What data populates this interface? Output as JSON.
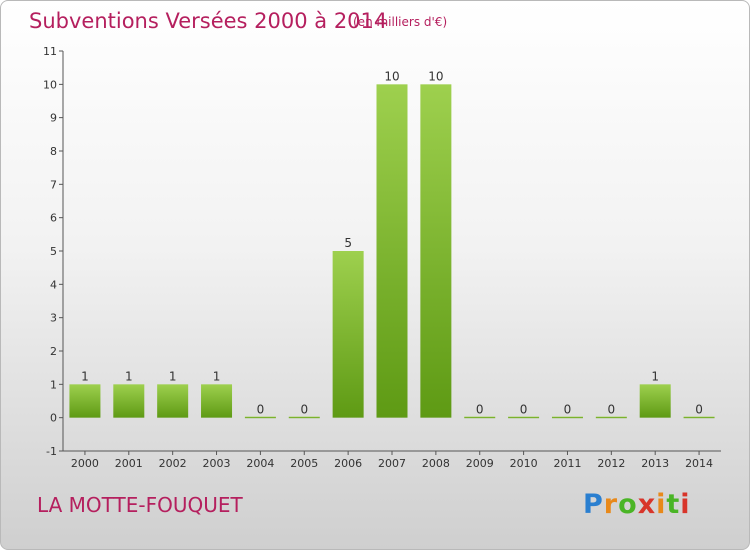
{
  "header": {
    "title": "Subventions Versées 2000 à 2014",
    "unit": "(en milliers d'€)"
  },
  "footer": {
    "town": "LA MOTTE-FOUQUET",
    "logo_text": "Proxiti"
  },
  "colors": {
    "title": "#b51f5e",
    "bar_top": "#9ed04e",
    "bar_bottom": "#5e9a14"
  },
  "chart_data": {
    "type": "bar",
    "title": "Subventions Versées 2000 à 2014",
    "xlabel": "",
    "ylabel": "",
    "ylim": [
      -1,
      11
    ],
    "yticks": [
      -1,
      0,
      1,
      2,
      3,
      4,
      5,
      6,
      7,
      8,
      9,
      10,
      11
    ],
    "categories": [
      "2000",
      "2001",
      "2002",
      "2003",
      "2004",
      "2005",
      "2006",
      "2007",
      "2008",
      "2009",
      "2010",
      "2011",
      "2012",
      "2013",
      "2014"
    ],
    "values": [
      1,
      1,
      1,
      1,
      0,
      0,
      5,
      10,
      10,
      0,
      0,
      0,
      0,
      1,
      0
    ],
    "grid": false,
    "legend": "none"
  }
}
